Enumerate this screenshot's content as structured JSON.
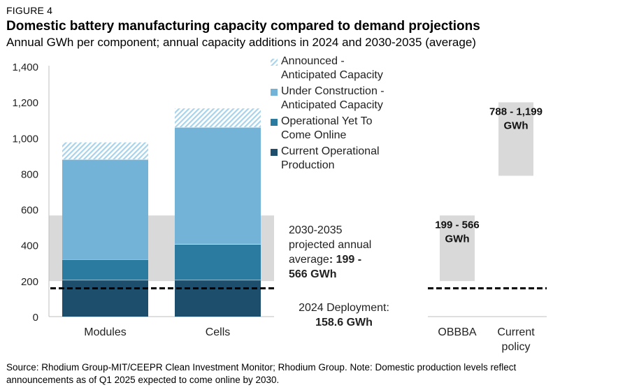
{
  "header": {
    "figure_label": "FIGURE 4",
    "title": "Domestic battery manufacturing capacity compared to demand projections",
    "subtitle": "Annual GWh per component; annual capacity additions in 2024 and 2030-2035 (average)"
  },
  "colors": {
    "current_operational": "#1d4e6b",
    "operational_yet": "#2b7aa0",
    "under_construction": "#73b3d8",
    "announced": "#a9d3ea",
    "range_band": "#d9d9d9",
    "deployment_line": "#000000"
  },
  "chart_data": {
    "type": "bar",
    "ylim": [
      0,
      1400
    ],
    "yticks": [
      "0",
      "200",
      "400",
      "600",
      "800",
      "1,000",
      "1,200",
      "1,400"
    ],
    "ytick_values": [
      0,
      200,
      400,
      600,
      800,
      1000,
      1200,
      1400
    ],
    "categories": [
      "Modules",
      "Cells"
    ],
    "series": [
      {
        "name": "Current Operational Production",
        "values": [
          205,
          205
        ]
      },
      {
        "name": "Operational Yet To Come Online",
        "values": [
          115,
          200
        ]
      },
      {
        "name": "Under Construction - Anticipated Capacity",
        "values": [
          560,
          655
        ]
      },
      {
        "name": "Announced - Anticipated Capacity",
        "values": [
          95,
          105
        ]
      }
    ],
    "legend": {
      "placement": "top-right",
      "items": [
        {
          "line1": "Announced -",
          "line2": "Anticipated Capacity",
          "key": "announced",
          "hatched": true
        },
        {
          "line1": "Under Construction -",
          "line2": "Anticipated Capacity",
          "key": "under_construction",
          "hatched": false
        },
        {
          "line1": "Operational Yet To",
          "line2": "Come Online",
          "key": "operational_yet",
          "hatched": false
        },
        {
          "line1": "Current Operational",
          "line2": "Production",
          "key": "current_operational",
          "hatched": false
        }
      ]
    },
    "projected_range": {
      "low": 199,
      "high": 566
    },
    "deployment_2024": 158.6,
    "annotations": {
      "range_line1": "2030-2035",
      "range_line2": "projected annual",
      "range_line3_plain": "average",
      "range_line3_bold": ": 199 -",
      "range_line4": "566 GWh",
      "deploy_line1": "2024 Deployment:",
      "deploy_line2": "158.6 GWh"
    },
    "scenarios": [
      {
        "name": "OBBBA",
        "label_lines": [
          "OBBBA"
        ],
        "low": 199,
        "high": 566,
        "value_label_lines": [
          "199 - 566",
          "GWh"
        ]
      },
      {
        "name": "Current policy",
        "label_lines": [
          "Current",
          "policy"
        ],
        "low": 788,
        "high": 1199,
        "value_label_lines": [
          "788 - 1,199",
          "GWh"
        ]
      }
    ]
  },
  "footer": {
    "source_line1": "Source: Rhodium Group-MIT/CEEPR Clean Investment Monitor; Rhodium Group. Note: Domestic production levels reflect",
    "source_line2": "announcements as of Q1 2025 expected to come online by 2030."
  }
}
